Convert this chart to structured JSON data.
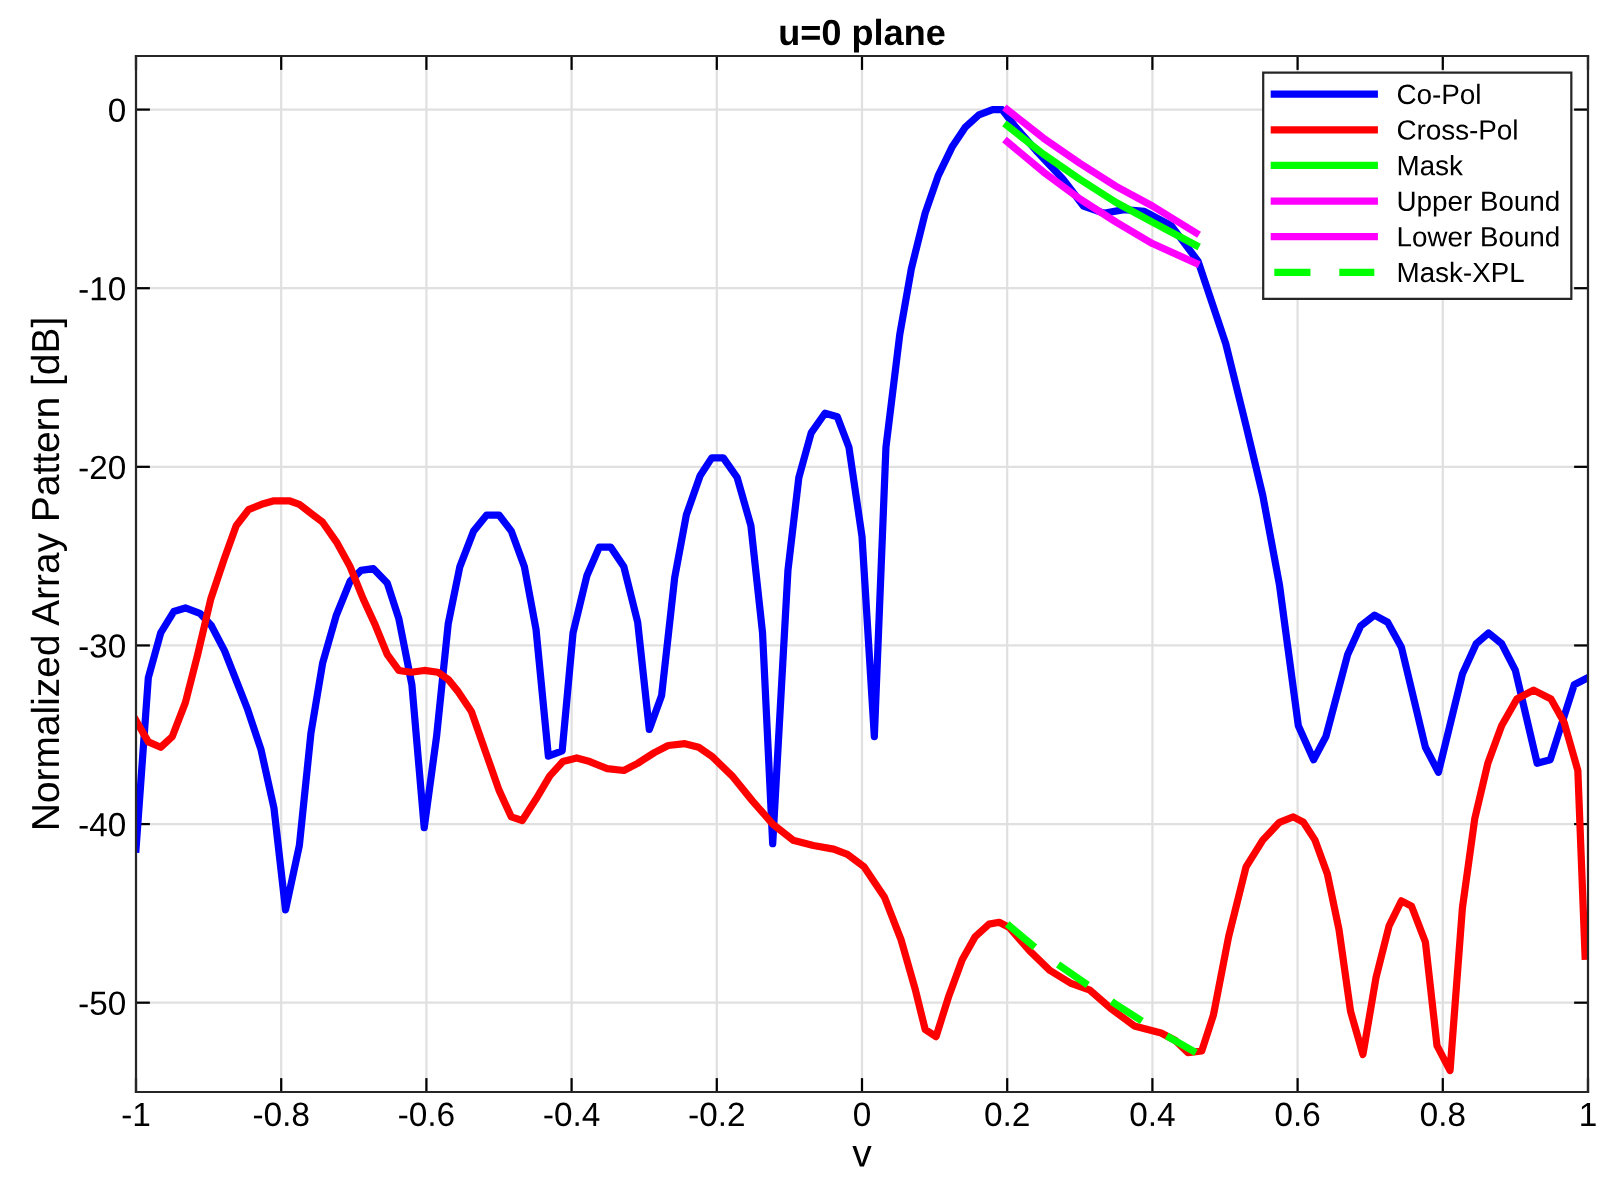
{
  "chart_data": {
    "type": "line",
    "title": "u=0 plane",
    "xlabel": "v",
    "ylabel": "Normalized Array Pattern [dB]",
    "xlim": [
      -1,
      1
    ],
    "ylim": [
      -55,
      3
    ],
    "xticks": [
      -1,
      -0.8,
      -0.6,
      -0.4,
      -0.2,
      0,
      0.2,
      0.4,
      0.6,
      0.8,
      1
    ],
    "yticks": [
      -50,
      -40,
      -30,
      -20,
      -10,
      0
    ],
    "grid": true,
    "legend": "top right",
    "marker": "none",
    "series": [
      {
        "name": "Co-Pol",
        "color": "#0000ff",
        "line_style": "solid",
        "x": [
          -1,
          -0.983,
          -0.966,
          -0.948,
          -0.932,
          -0.912,
          -0.896,
          -0.878,
          -0.847,
          -0.828,
          -0.81,
          -0.794,
          -0.775,
          -0.759,
          -0.743,
          -0.724,
          -0.705,
          -0.69,
          -0.673,
          -0.654,
          -0.638,
          -0.62,
          -0.603,
          -0.586,
          -0.57,
          -0.554,
          -0.535,
          -0.517,
          -0.5,
          -0.483,
          -0.465,
          -0.449,
          -0.432,
          -0.413,
          -0.398,
          -0.379,
          -0.362,
          -0.346,
          -0.328,
          -0.309,
          -0.293,
          -0.276,
          -0.258,
          -0.242,
          -0.223,
          -0.207,
          -0.191,
          -0.172,
          -0.153,
          -0.137,
          -0.123,
          -0.102,
          -0.087,
          -0.07,
          -0.051,
          -0.034,
          -0.018,
          0.0,
          0.017,
          0.033,
          0.052,
          0.068,
          0.087,
          0.105,
          0.124,
          0.142,
          0.161,
          0.18,
          0.193,
          0.212,
          0.24,
          0.277,
          0.305,
          0.333,
          0.361,
          0.389,
          0.426,
          0.463,
          0.501,
          0.529,
          0.552,
          0.575,
          0.601,
          0.622,
          0.639,
          0.669,
          0.687,
          0.706,
          0.724,
          0.743,
          0.776,
          0.794,
          0.827,
          0.846,
          0.863,
          0.881,
          0.9,
          0.93,
          0.948,
          0.981,
          1.0
        ],
        "values": [
          -41.4,
          -31.8,
          -29.3,
          -28.1,
          -27.9,
          -28.2,
          -28.9,
          -30.3,
          -33.5,
          -35.8,
          -39.1,
          -44.8,
          -41.2,
          -34.9,
          -31.0,
          -28.3,
          -26.4,
          -25.8,
          -25.7,
          -26.5,
          -28.5,
          -32.2,
          -40.2,
          -35.1,
          -28.8,
          -25.6,
          -23.6,
          -22.7,
          -22.7,
          -23.6,
          -25.6,
          -29.1,
          -36.2,
          -35.9,
          -29.3,
          -26.1,
          -24.5,
          -24.5,
          -25.6,
          -28.7,
          -34.7,
          -32.8,
          -26.2,
          -22.7,
          -20.5,
          -19.5,
          -19.5,
          -20.6,
          -23.3,
          -29.3,
          -41.1,
          -25.8,
          -20.6,
          -18.1,
          -17.0,
          -17.2,
          -18.9,
          -23.9,
          -35.1,
          -18.9,
          -12.6,
          -8.9,
          -5.8,
          -3.7,
          -2.1,
          -1.0,
          -0.3,
          0.0,
          0.0,
          -1.0,
          -2.3,
          -3.9,
          -5.4,
          -5.8,
          -5.6,
          -5.7,
          -6.5,
          -8.5,
          -13.1,
          -17.7,
          -21.6,
          -26.6,
          -34.5,
          -36.4,
          -35.1,
          -30.5,
          -28.9,
          -28.3,
          -28.7,
          -30.1,
          -35.7,
          -37.1,
          -31.6,
          -29.9,
          -29.3,
          -29.9,
          -31.4,
          -36.6,
          -36.4,
          -32.2,
          -31.8
        ]
      },
      {
        "name": "Cross-Pol",
        "color": "#ff0000",
        "line_style": "solid",
        "x": [
          -1,
          -0.983,
          -0.966,
          -0.95,
          -0.932,
          -0.915,
          -0.897,
          -0.878,
          -0.862,
          -0.845,
          -0.827,
          -0.81,
          -0.789,
          -0.775,
          -0.759,
          -0.743,
          -0.724,
          -0.705,
          -0.687,
          -0.67,
          -0.654,
          -0.638,
          -0.621,
          -0.603,
          -0.584,
          -0.57,
          -0.556,
          -0.538,
          -0.519,
          -0.5,
          -0.483,
          -0.468,
          -0.449,
          -0.43,
          -0.412,
          -0.393,
          -0.375,
          -0.351,
          -0.328,
          -0.309,
          -0.286,
          -0.267,
          -0.244,
          -0.225,
          -0.207,
          -0.179,
          -0.151,
          -0.123,
          -0.095,
          -0.067,
          -0.039,
          -0.02,
          0.003,
          0.031,
          0.054,
          0.073,
          0.087,
          0.102,
          0.119,
          0.138,
          0.156,
          0.175,
          0.189,
          0.203,
          0.231,
          0.259,
          0.287,
          0.314,
          0.342,
          0.375,
          0.412,
          0.431,
          0.449,
          0.468,
          0.484,
          0.505,
          0.529,
          0.552,
          0.575,
          0.594,
          0.608,
          0.624,
          0.641,
          0.657,
          0.673,
          0.69,
          0.708,
          0.726,
          0.743,
          0.757,
          0.776,
          0.792,
          0.81,
          0.827,
          0.844,
          0.862,
          0.881,
          0.902,
          0.925,
          0.949,
          0.967,
          0.986,
          0.996
        ],
        "values": [
          -34.2,
          -35.4,
          -35.7,
          -35.1,
          -33.2,
          -30.5,
          -27.4,
          -25.1,
          -23.3,
          -22.4,
          -22.1,
          -21.9,
          -21.9,
          -22.1,
          -22.6,
          -23.1,
          -24.2,
          -25.6,
          -27.4,
          -28.9,
          -30.5,
          -31.4,
          -31.5,
          -31.4,
          -31.5,
          -31.9,
          -32.6,
          -33.7,
          -35.9,
          -38.1,
          -39.6,
          -39.8,
          -38.6,
          -37.3,
          -36.5,
          -36.3,
          -36.5,
          -36.9,
          -37.0,
          -36.6,
          -36.0,
          -35.6,
          -35.5,
          -35.7,
          -36.2,
          -37.3,
          -38.7,
          -40.0,
          -40.9,
          -41.2,
          -41.4,
          -41.7,
          -42.4,
          -44.1,
          -46.5,
          -49.2,
          -51.5,
          -51.9,
          -49.7,
          -47.6,
          -46.3,
          -45.6,
          -45.5,
          -45.8,
          -47.1,
          -48.2,
          -48.9,
          -49.3,
          -50.3,
          -51.3,
          -51.7,
          -52.1,
          -52.8,
          -52.7,
          -50.7,
          -46.3,
          -42.4,
          -40.9,
          -39.9,
          -39.6,
          -39.9,
          -40.9,
          -42.8,
          -45.9,
          -50.5,
          -52.9,
          -48.6,
          -45.7,
          -44.3,
          -44.6,
          -46.6,
          -52.4,
          -53.8,
          -44.7,
          -39.7,
          -36.6,
          -34.5,
          -33.0,
          -32.5,
          -33.0,
          -34.3,
          -37.0,
          -47.4
        ]
      },
      {
        "name": "Mask",
        "color": "#00ff00",
        "line_style": "solid",
        "x": [
          0.2,
          0.25,
          0.3,
          0.35,
          0.4,
          0.46
        ],
        "values": [
          -0.9,
          -2.5,
          -3.9,
          -5.2,
          -6.3,
          -7.6
        ]
      },
      {
        "name": "Upper Bound",
        "color": "#ff00ff",
        "line_style": "solid",
        "x": [
          0.2,
          0.25,
          0.3,
          0.35,
          0.4,
          0.46
        ],
        "values": [
          0.0,
          -1.6,
          -3.0,
          -4.3,
          -5.4,
          -6.9
        ]
      },
      {
        "name": "Lower Bound",
        "color": "#ff00ff",
        "line_style": "solid",
        "x": [
          0.2,
          0.25,
          0.3,
          0.35,
          0.4,
          0.46
        ],
        "values": [
          -1.8,
          -3.5,
          -5.0,
          -6.3,
          -7.5,
          -8.6
        ]
      },
      {
        "name": "Mask-XPL",
        "color": "#00ff00",
        "line_style": "dashed",
        "x": [
          0.2,
          0.25,
          0.3,
          0.35,
          0.4,
          0.46
        ],
        "values": [
          -45.6,
          -47.3,
          -48.7,
          -50.1,
          -51.4,
          -52.8
        ]
      }
    ]
  }
}
